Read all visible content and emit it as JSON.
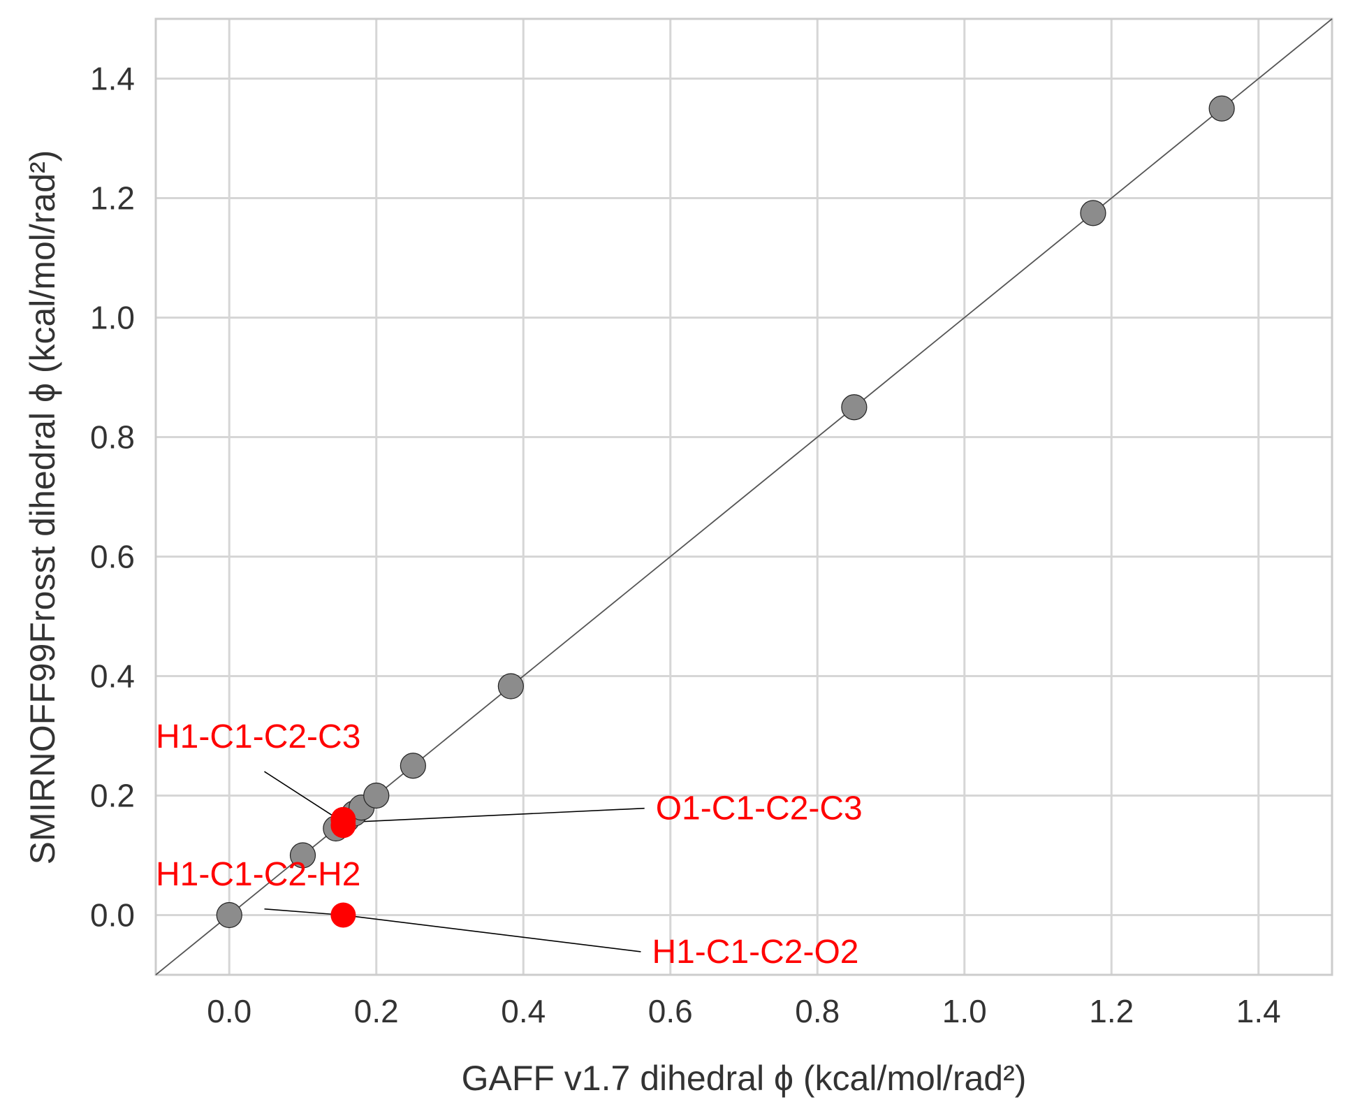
{
  "chart_data": {
    "type": "scatter",
    "xlabel": "GAFF v1.7 dihedral ϕ (kcal/mol/rad²)",
    "ylabel": "SMIRNOFF99Frosst dihedral ϕ (kcal/mol/rad²)",
    "xlim": [
      -0.1,
      1.5
    ],
    "ylim": [
      -0.1,
      1.5
    ],
    "x_ticks": [
      "0.0",
      "0.2",
      "0.4",
      "0.6",
      "0.8",
      "1.0",
      "1.2",
      "1.4"
    ],
    "y_ticks": [
      "0.0",
      "0.2",
      "0.4",
      "0.6",
      "0.8",
      "1.0",
      "1.2",
      "1.4"
    ],
    "grid": true,
    "reference_line": "y = x",
    "series": [
      {
        "color": "#8c8c8c",
        "points": [
          {
            "x": 0.0,
            "y": 0.0
          },
          {
            "x": 0.1,
            "y": 0.1
          },
          {
            "x": 0.145,
            "y": 0.145
          },
          {
            "x": 0.16,
            "y": 0.16
          },
          {
            "x": 0.17,
            "y": 0.17
          },
          {
            "x": 0.18,
            "y": 0.18
          },
          {
            "x": 0.2,
            "y": 0.2
          },
          {
            "x": 0.25,
            "y": 0.25
          },
          {
            "x": 0.383,
            "y": 0.383
          },
          {
            "x": 0.85,
            "y": 0.85
          },
          {
            "x": 1.175,
            "y": 1.175
          },
          {
            "x": 1.35,
            "y": 1.35
          }
        ]
      },
      {
        "color": "#ff0000",
        "points": [
          {
            "x": 0.155,
            "y": 0.16
          },
          {
            "x": 0.155,
            "y": 0.15
          },
          {
            "x": 0.155,
            "y": 0.0
          }
        ]
      }
    ],
    "annotations": [
      {
        "text": "H1-C1-C2-C3",
        "text_x": -0.1,
        "text_y": 0.28,
        "point_x": 0.155,
        "point_y": 0.155
      },
      {
        "text": "O1-C1-C2-C3",
        "text_x": 0.58,
        "text_y": 0.16,
        "point_x": 0.155,
        "point_y": 0.155
      },
      {
        "text": "H1-C1-C2-H2",
        "text_x": -0.1,
        "text_y": 0.05,
        "point_x": 0.155,
        "point_y": 0.0
      },
      {
        "text": "H1-C1-C2-O2",
        "text_x": 0.575,
        "text_y": -0.08,
        "point_x": 0.155,
        "point_y": 0.0
      }
    ]
  }
}
